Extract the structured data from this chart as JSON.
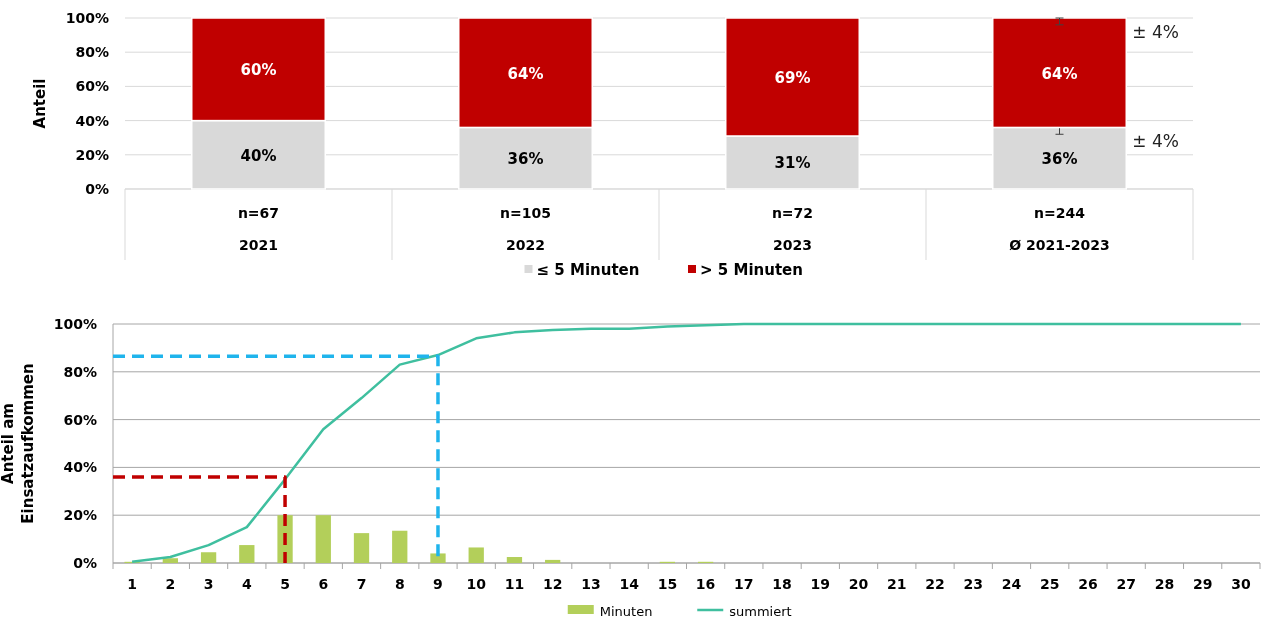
{
  "chart_data": [
    {
      "type": "bar",
      "stacked": true,
      "ylabel": "Anteil",
      "categories": [
        "n=67\n2021",
        "n=105\n2022",
        "n=72\n2023",
        "n=244\nØ 2021-2023"
      ],
      "series": [
        {
          "name": "≤ 5 Minuten",
          "color": "#d9d9d9",
          "values": [
            40,
            36,
            31,
            36
          ],
          "value_labels": [
            "40%",
            "36%",
            "31%",
            "36%"
          ],
          "errors": [
            null,
            null,
            null,
            4
          ]
        },
        {
          "name": "> 5 Minuten",
          "color": "#c00000",
          "values": [
            60,
            64,
            69,
            64
          ],
          "value_labels": [
            "60%",
            "64%",
            "69%",
            "64%"
          ],
          "errors": [
            null,
            null,
            null,
            4
          ]
        }
      ],
      "ylim": [
        0,
        100
      ],
      "yticks": [
        {
          "value": 0,
          "label": "0%"
        },
        {
          "value": 20,
          "label": "20%"
        },
        {
          "value": 40,
          "label": "40%"
        },
        {
          "value": 60,
          "label": "60%"
        },
        {
          "value": 80,
          "label": "80%"
        },
        {
          "value": 100,
          "label": "100%"
        }
      ],
      "annotations": [
        "± 4%",
        "± 4%"
      ],
      "grid": "y",
      "legend": "bottom"
    },
    {
      "type": "bar",
      "ylabel": "Anteil am Einsatzaufkommen",
      "x": [
        1,
        2,
        3,
        4,
        5,
        6,
        7,
        8,
        9,
        10,
        11,
        12,
        13,
        14,
        15,
        16,
        17,
        18,
        19,
        20,
        21,
        22,
        23,
        24,
        25,
        26,
        27,
        28,
        29,
        30
      ],
      "series": [
        {
          "name": "Minuten",
          "color": "#b3cf5a",
          "values": [
            0.5,
            2,
            4.5,
            7.5,
            20,
            20,
            12.5,
            13.5,
            4,
            6.5,
            2.5,
            1.3,
            0,
            0,
            0.5,
            0.5,
            0,
            0,
            0,
            0,
            0,
            0,
            0,
            0,
            0,
            0,
            0,
            0,
            0,
            0
          ]
        },
        {
          "name": "summiert",
          "type": "line",
          "color": "#3fbf9f",
          "values": [
            0.5,
            2.5,
            7.5,
            15,
            35,
            56,
            69,
            83,
            87,
            94,
            96.5,
            97.5,
            98,
            98,
            99,
            99.5,
            100,
            100,
            100,
            100,
            100,
            100,
            100,
            100,
            100,
            100,
            100,
            100,
            100,
            100
          ]
        },
        {
          "type": "line",
          "color": "#c00000",
          "line_style": "dashed",
          "x": [
            0.5,
            5,
            5
          ],
          "values": [
            36,
            36,
            0
          ]
        },
        {
          "type": "line",
          "color": "#1fb4ec",
          "line_style": "dashed",
          "x": [
            0.5,
            9,
            9
          ],
          "values": [
            86.5,
            86.5,
            0
          ]
        }
      ],
      "xlim": [
        0.5,
        30.5
      ],
      "xticks": [
        1,
        2,
        3,
        4,
        5,
        6,
        7,
        8,
        9,
        10,
        11,
        12,
        13,
        14,
        15,
        16,
        17,
        18,
        19,
        20,
        21,
        22,
        23,
        24,
        25,
        26,
        27,
        28,
        29,
        30
      ],
      "ylim": [
        0,
        100
      ],
      "yticks": [
        {
          "value": 0,
          "label": "0%"
        },
        {
          "value": 20,
          "label": "20%"
        },
        {
          "value": 40,
          "label": "40%"
        },
        {
          "value": 60,
          "label": "60%"
        },
        {
          "value": 80,
          "label": "80%"
        },
        {
          "value": 100,
          "label": "100%"
        }
      ],
      "grid": "y",
      "legend": "bottom"
    }
  ]
}
